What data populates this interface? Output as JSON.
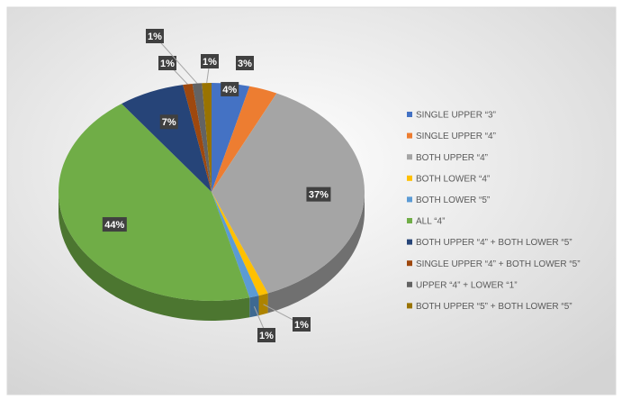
{
  "chart_data": {
    "type": "pie",
    "categories": [
      "SINGLE UPPER “3”",
      "SINGLE UPPER “4”",
      "BOTH UPPER “4”",
      "BOTH LOWER “4”",
      "BOTH LOWER “5”",
      "ALL “4”",
      "BOTH UPPER “4” + BOTH LOWER “5”",
      "SINGLE UPPER “4” + BOTH LOWER “5”",
      "UPPER “4” + LOWER “1”",
      "BOTH UPPER “5” + BOTH LOWER “5”"
    ],
    "values": [
      4,
      3,
      37,
      1,
      1,
      44,
      7,
      1,
      1,
      1
    ],
    "value_labels": [
      "4%",
      "3%",
      "37%",
      "1%",
      "1%",
      "44%",
      "7%",
      "1%",
      "1%",
      "1%"
    ],
    "colors": [
      "#4472c4",
      "#ed7d31",
      "#a5a5a5",
      "#ffc000",
      "#5b9bd5",
      "#70ad47",
      "#264478",
      "#9e480e",
      "#636363",
      "#997300"
    ],
    "legend": "right"
  }
}
